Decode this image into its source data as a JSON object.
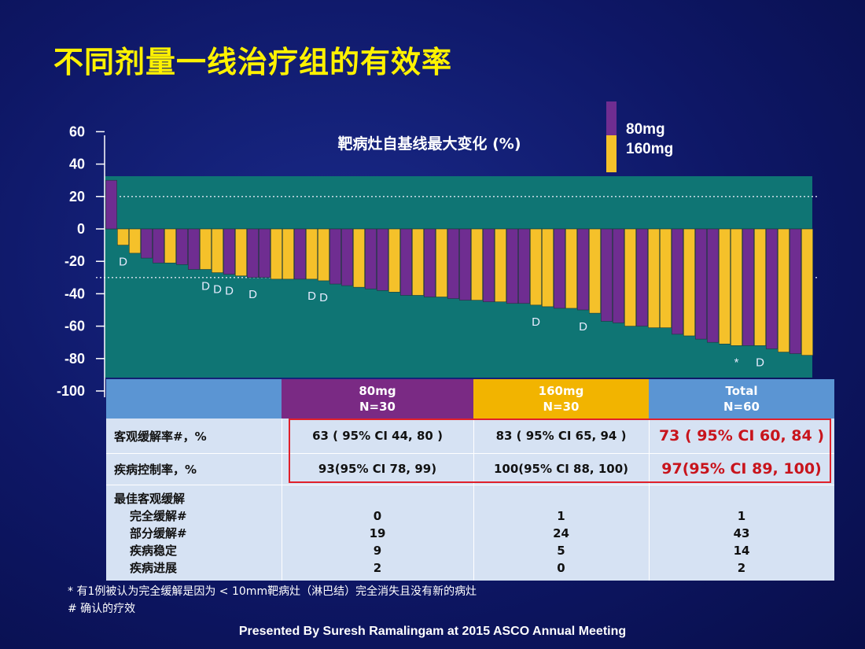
{
  "title": "不同剂量一线治疗组的有效率",
  "colors": {
    "mg80": "#6f2d91",
    "mg160": "#f5c12a",
    "plot_bg": "#0f7574"
  },
  "chart_data": {
    "type": "bar",
    "title": "靶病灶自基线最大变化 (%)",
    "ylim": [
      -100,
      60
    ],
    "yticks": [
      60,
      40,
      20,
      0,
      -20,
      -40,
      -60,
      -80,
      -100
    ],
    "reference_lines": [
      20,
      -30
    ],
    "legend": [
      "80mg",
      "160mg"
    ],
    "legend_position": "top-right",
    "series_order": [
      "80mg",
      "160mg",
      "160mg",
      "80mg",
      "80mg",
      "160mg",
      "80mg",
      "80mg",
      "160mg",
      "160mg",
      "80mg",
      "160mg",
      "80mg",
      "80mg",
      "160mg",
      "160mg",
      "80mg",
      "160mg",
      "160mg",
      "80mg",
      "80mg",
      "160mg",
      "80mg",
      "80mg",
      "160mg",
      "80mg",
      "160mg",
      "80mg",
      "160mg",
      "80mg",
      "80mg",
      "160mg",
      "80mg",
      "160mg",
      "80mg",
      "80mg",
      "160mg",
      "160mg",
      "80mg",
      "160mg",
      "80mg",
      "160mg",
      "80mg",
      "80mg",
      "160mg",
      "80mg",
      "160mg",
      "160mg",
      "80mg",
      "160mg",
      "80mg",
      "80mg",
      "160mg",
      "160mg",
      "80mg",
      "160mg",
      "80mg",
      "160mg",
      "80mg",
      "160mg"
    ],
    "values": [
      30,
      -10,
      -15,
      -18,
      -21,
      -21,
      -22,
      -25,
      -25,
      -27,
      -28,
      -29,
      -30,
      -30,
      -31,
      -31,
      -31,
      -31,
      -32,
      -34,
      -35,
      -36,
      -37,
      -38,
      -39,
      -41,
      -41,
      -42,
      -42,
      -43,
      -44,
      -44,
      -45,
      -45,
      -46,
      -46,
      -47,
      -48,
      -49,
      -49,
      -50,
      -52,
      -57,
      -58,
      -60,
      -60,
      -61,
      -61,
      -65,
      -66,
      -68,
      -70,
      -71,
      -72,
      -72,
      -72,
      -74,
      -76,
      -77,
      -78
    ],
    "markers": [
      {
        "bar": 1,
        "label": "D"
      },
      {
        "bar": 8,
        "label": "D"
      },
      {
        "bar": 9,
        "label": "D"
      },
      {
        "bar": 10,
        "label": "D"
      },
      {
        "bar": 12,
        "label": "D"
      },
      {
        "bar": 17,
        "label": "D"
      },
      {
        "bar": 18,
        "label": "D"
      },
      {
        "bar": 36,
        "label": "D"
      },
      {
        "bar": 40,
        "label": "D"
      },
      {
        "bar": 53,
        "label": "*"
      },
      {
        "bar": 55,
        "label": "D"
      }
    ]
  },
  "table": {
    "headers": [
      {
        "label": "80mg",
        "n": "N=30"
      },
      {
        "label": "160mg",
        "n": "N=30"
      },
      {
        "label": "Total",
        "n": "N=60"
      }
    ],
    "rows": [
      {
        "label": "客观缓解率#，%",
        "values": [
          "63 ( 95% CI 44, 80 )",
          "83 ( 95% CI 65, 94 )",
          "73 ( 95% CI 60, 84 )"
        ]
      },
      {
        "label": "疾病控制率，%",
        "values": [
          "93(95% CI 78, 99)",
          "100(95% CI 88, 100)",
          "97(95% CI 89, 100)"
        ]
      }
    ],
    "best_response": {
      "title": "最佳客观缓解",
      "items": [
        {
          "label": "完全缓解#",
          "values": [
            "0",
            "1",
            "1"
          ]
        },
        {
          "label": "部分缓解#",
          "values": [
            "19",
            "24",
            "43"
          ]
        },
        {
          "label": "疾病稳定",
          "values": [
            "9",
            "5",
            "14"
          ]
        },
        {
          "label": "疾病进展",
          "values": [
            "2",
            "0",
            "2"
          ]
        }
      ]
    }
  },
  "footnotes": [
    "* 有1例被认为完全缓解是因为 < 10mm靶病灶（淋巴结）完全消失且没有新的病灶",
    "# 确认的疗效"
  ],
  "presented_by": "Presented By Suresh Ramalingam at 2015 ASCO Annual Meeting"
}
